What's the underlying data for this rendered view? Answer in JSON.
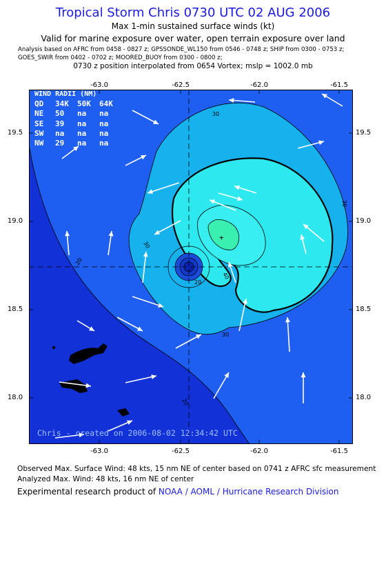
{
  "header": {
    "title": "Tropical Storm Chris 0730 UTC 02 AUG 2006",
    "subtitle1": "Max 1-min sustained surface winds (kt)",
    "subtitle2": "Valid for marine exposure over water, open terrain exposure over land",
    "sources_line1": "Analysis based on  AFRC from 0458 - 0827 z;  GPSSONDE_WL150 from 0546 - 0748 z;   SHIP from 0300 - 0753 z;",
    "sources_line2": "GOES_SWIR from 0402 - 0702 z;  MOORED_BUOY from 0300 - 0800 z;",
    "position_line": "0730 z position interpolated from 0654 Vortex; mslp = 1002.0 mb"
  },
  "map": {
    "x_ticks": [
      "-63.0",
      "-62.5",
      "-62.0",
      "-61.5"
    ],
    "y_ticks": [
      "19.5",
      "19.0",
      "18.5",
      "18.0"
    ],
    "contour_labels": [
      "20",
      "30",
      "40",
      "20",
      "30",
      "30",
      "20",
      "30",
      "20"
    ],
    "center_marker": "+",
    "colors": {
      "c0": "#1232d8",
      "c20": "#1e5ef0",
      "c30": "#16b2ee",
      "c40": "#2de8ee",
      "c45": "#3af0b0",
      "land": "#000000",
      "arrow": "#ffffff"
    },
    "stamp": "Chris - created on 2006-08-02 12:34:42 UTC"
  },
  "wind_radii": {
    "title": "WIND RADII (NM)",
    "columns": [
      "QD",
      "34K",
      "50K",
      "64K"
    ],
    "rows": [
      {
        "q": "NE",
        "k34": "50",
        "k50": "na",
        "k64": "na"
      },
      {
        "q": "SE",
        "k34": "39",
        "k50": "na",
        "k64": "na"
      },
      {
        "q": "SW",
        "k34": "na",
        "k50": "na",
        "k64": "na"
      },
      {
        "q": "NW",
        "k34": "29",
        "k50": "na",
        "k64": "na"
      }
    ]
  },
  "footer": {
    "observed": "Observed Max. Surface Wind: 48 kts, 15 nm NE of center based on 0741 z AFRC sfc measurement",
    "analyzed": "Analyzed Max. Wind: 48 kts, 16 nm NE of center",
    "credit_prefix": "Experimental research product of ",
    "credit_org": "NOAA / AOML / Hurricane Research Division"
  }
}
